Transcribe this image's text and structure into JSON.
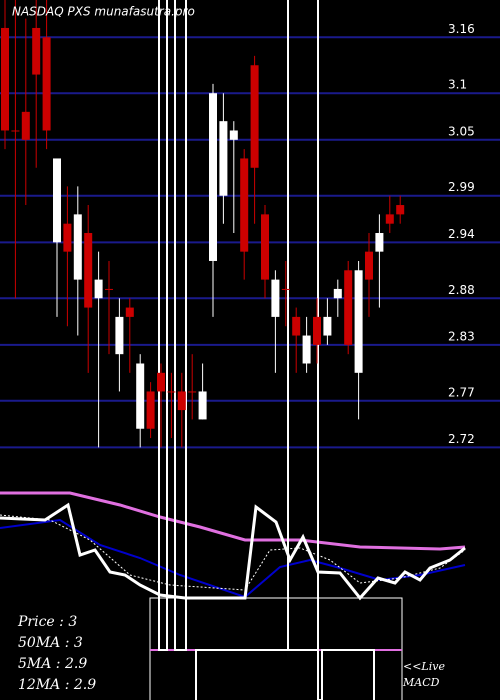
{
  "chart_data": {
    "type": "candlestick",
    "title": "NASDAQ PXS munafasutra.pro",
    "ylim": [
      2.685,
      3.2
    ],
    "yticks": [
      3.16,
      3.1,
      3.05,
      2.99,
      2.94,
      2.88,
      2.83,
      2.77,
      2.72
    ],
    "grid": true,
    "grid_color": "#1a1a8c",
    "up_color": "#cc0000",
    "down_color": "#ffffff",
    "open": [
      3.06,
      3.06,
      3.05,
      3.12,
      3.06,
      3.03,
      2.93,
      2.97,
      2.87,
      2.9,
      2.89,
      2.86,
      2.86,
      2.81,
      2.74,
      2.78,
      2.78,
      2.76,
      2.78,
      2.78,
      3.1,
      3.07,
      3.06,
      2.93,
      3.02,
      2.9,
      2.9,
      2.89,
      2.84,
      2.84,
      2.83,
      2.86,
      2.89,
      2.83,
      2.91,
      2.9,
      2.95,
      2.96,
      2.97
    ],
    "high": [
      3.2,
      3.2,
      3.18,
      3.2,
      3.2,
      3.03,
      3.0,
      3.0,
      2.98,
      2.93,
      2.92,
      2.88,
      2.88,
      2.82,
      2.79,
      2.81,
      2.8,
      2.8,
      2.82,
      2.81,
      3.11,
      3.1,
      3.07,
      3.04,
      3.14,
      2.98,
      2.91,
      2.92,
      2.87,
      2.86,
      2.88,
      2.88,
      2.9,
      2.92,
      2.92,
      2.95,
      2.97,
      2.99,
      2.99
    ],
    "low": [
      3.04,
      2.88,
      2.98,
      3.02,
      3.04,
      2.86,
      2.85,
      2.84,
      2.8,
      2.72,
      2.82,
      2.78,
      2.8,
      2.72,
      2.73,
      2.72,
      2.73,
      2.72,
      2.75,
      2.75,
      2.86,
      2.96,
      2.95,
      2.9,
      2.96,
      2.88,
      2.8,
      2.85,
      2.8,
      2.8,
      2.81,
      2.83,
      2.86,
      2.82,
      2.75,
      2.86,
      2.87,
      2.95,
      2.96
    ],
    "close": [
      3.17,
      3.06,
      3.08,
      3.17,
      3.16,
      2.94,
      2.96,
      2.9,
      2.95,
      2.88,
      2.89,
      2.82,
      2.87,
      2.74,
      2.78,
      2.8,
      2.78,
      2.78,
      2.78,
      2.75,
      2.92,
      2.99,
      3.05,
      3.03,
      3.13,
      2.97,
      2.86,
      2.89,
      2.86,
      2.81,
      2.86,
      2.84,
      2.88,
      2.91,
      2.8,
      2.93,
      2.93,
      2.97,
      2.98
    ],
    "legend_lines": [
      "Price   : 3",
      "50MA : 3",
      "5MA : 2.9",
      "12MA : 2.9"
    ],
    "live_label": "<<Live",
    "macd_label": "MACD"
  }
}
